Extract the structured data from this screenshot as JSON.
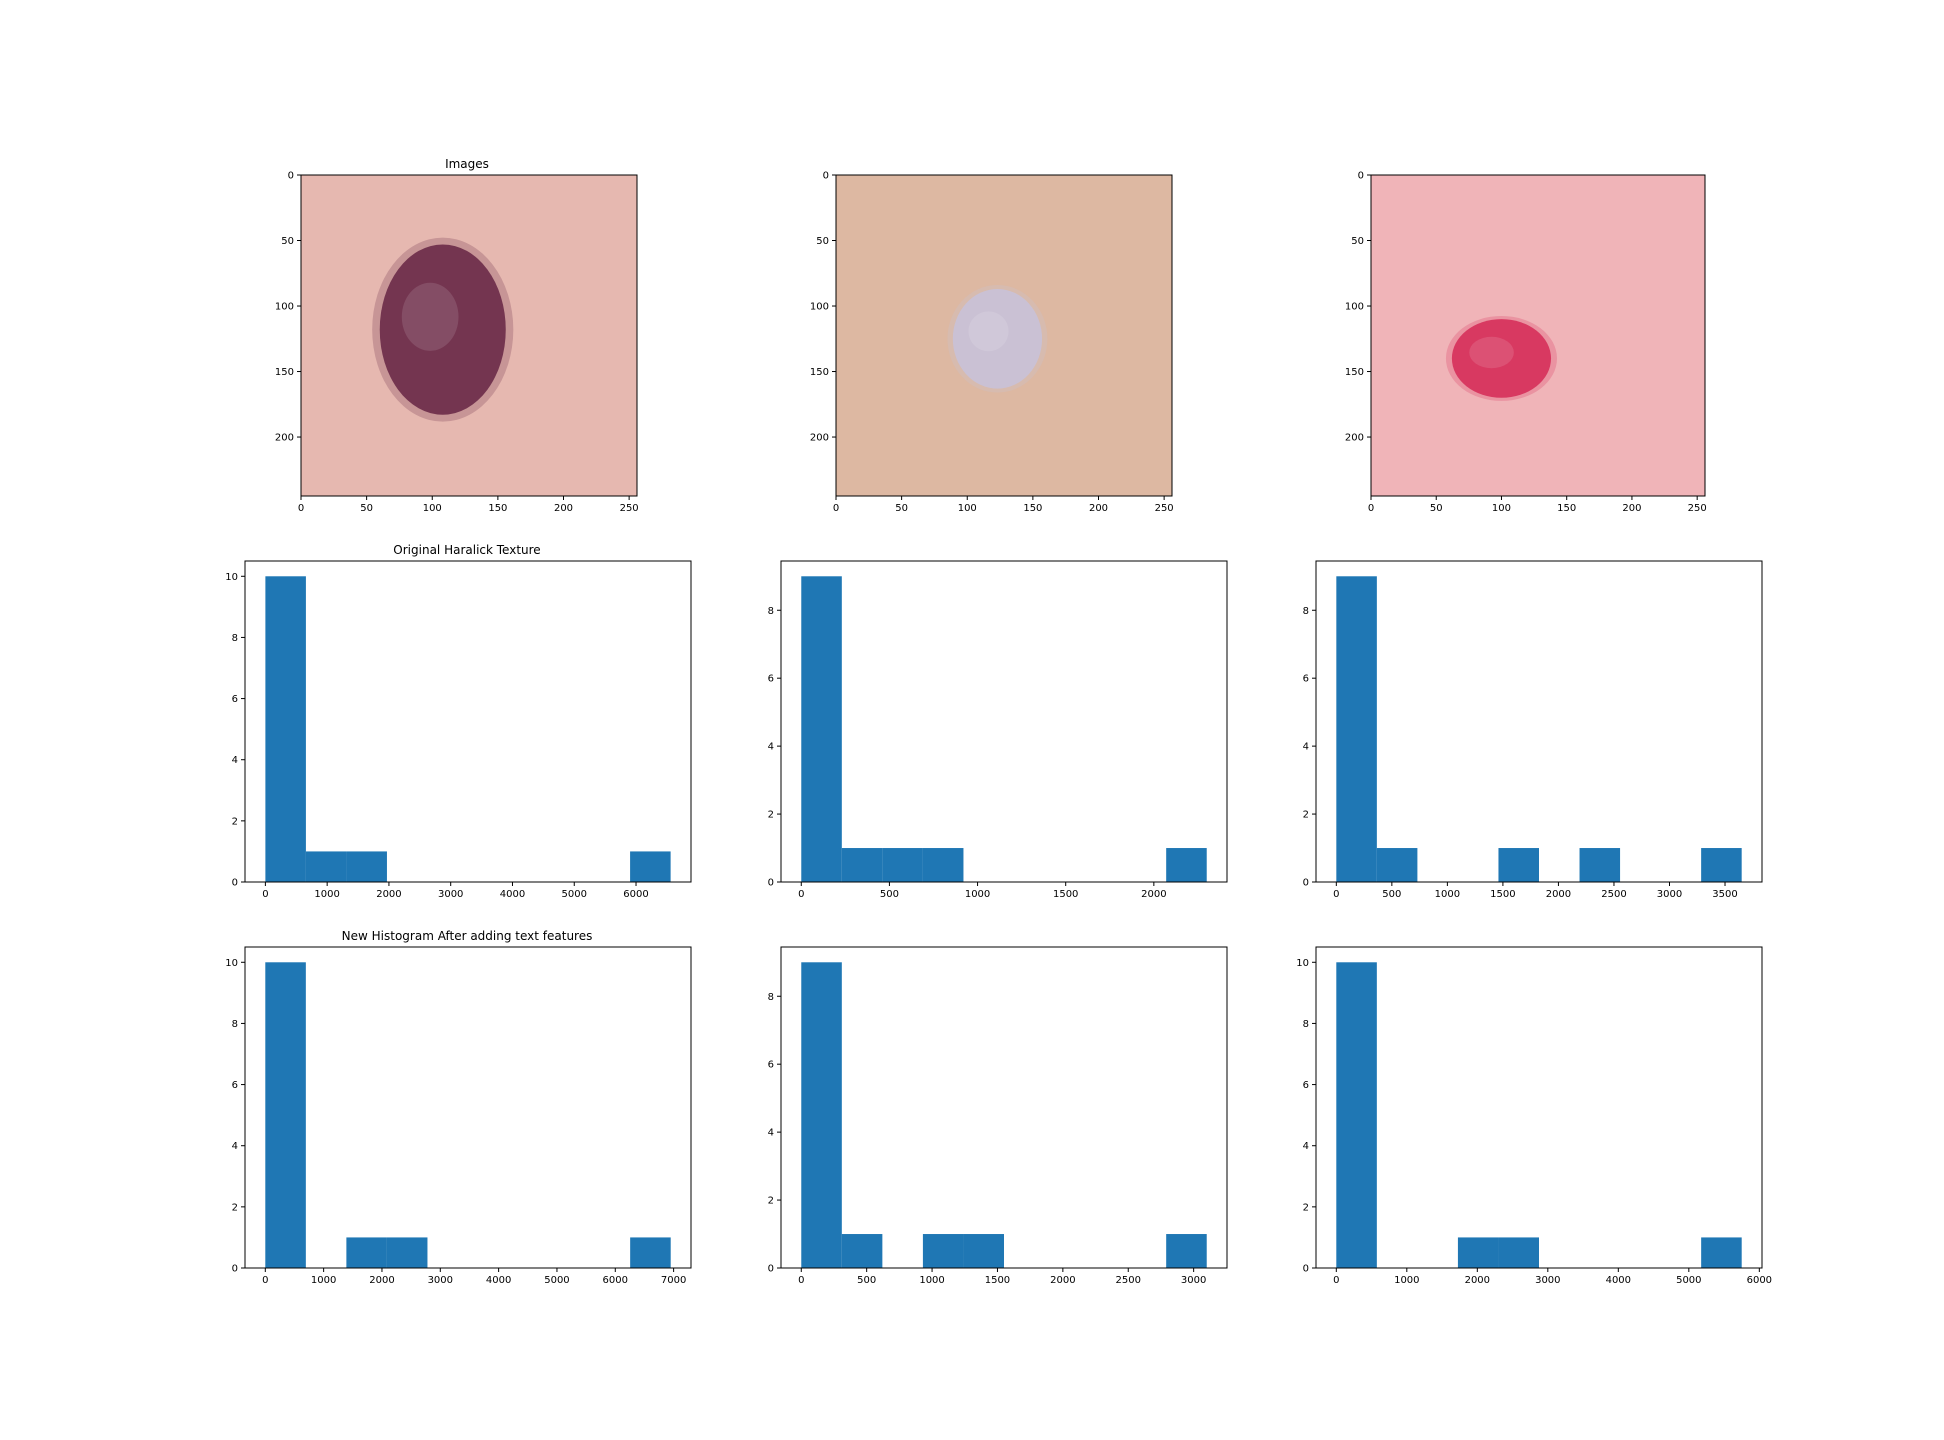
{
  "figure": {
    "background": "#ffffff",
    "bar_color": "#1f77b4"
  },
  "row_titles": {
    "images": "Images",
    "original": "Original Haralick Texture",
    "new": "New Histogram After adding text features"
  },
  "lesion_images": [
    {
      "type": "image",
      "xlim": [
        0,
        256
      ],
      "ylim": [
        245,
        0
      ],
      "xticks": [
        0,
        50,
        100,
        150,
        200,
        250
      ],
      "yticks": [
        0,
        50,
        100,
        150,
        200
      ],
      "background_color": "#e6b8b0",
      "lesion_color": "#6a2a48",
      "lesion_center": [
        108,
        118
      ],
      "lesion_radius": [
        48,
        65
      ]
    },
    {
      "type": "image",
      "xlim": [
        0,
        256
      ],
      "ylim": [
        245,
        0
      ],
      "xticks": [
        0,
        50,
        100,
        150,
        200,
        250
      ],
      "yticks": [
        0,
        50,
        100,
        150,
        200
      ],
      "background_color": "#ddb8a2",
      "lesion_color": "#c9c2d8",
      "lesion_center": [
        123,
        125
      ],
      "lesion_radius": [
        34,
        38
      ]
    },
    {
      "type": "image",
      "xlim": [
        0,
        256
      ],
      "ylim": [
        245,
        0
      ],
      "xticks": [
        0,
        50,
        100,
        150,
        200,
        250
      ],
      "yticks": [
        0,
        50,
        100,
        150,
        200
      ],
      "background_color": "#f0b4b8",
      "lesion_color": "#d6305a",
      "lesion_center": [
        100,
        140
      ],
      "lesion_radius": [
        38,
        30
      ]
    }
  ],
  "chart_data": [
    {
      "type": "bar",
      "title": "",
      "bins": [
        [
          0,
          656
        ],
        [
          656,
          1312
        ],
        [
          1312,
          1968
        ],
        [
          5904,
          6560
        ]
      ],
      "values": [
        10,
        1,
        1,
        1
      ],
      "xlim": [
        -330,
        6890
      ],
      "ylim": [
        0,
        10.5
      ],
      "xticks": [
        0,
        1000,
        2000,
        3000,
        4000,
        5000,
        6000
      ],
      "yticks": [
        0,
        2,
        4,
        6,
        8,
        10
      ]
    },
    {
      "type": "bar",
      "title": "",
      "bins": [
        [
          0,
          230
        ],
        [
          230,
          460
        ],
        [
          460,
          690
        ],
        [
          690,
          920
        ],
        [
          2070,
          2300
        ]
      ],
      "values": [
        9,
        1,
        1,
        1,
        1
      ],
      "xlim": [
        -115,
        2415
      ],
      "ylim": [
        0,
        9.45
      ],
      "xticks": [
        0,
        500,
        1000,
        1500,
        2000
      ],
      "yticks": [
        0,
        2,
        4,
        6,
        8
      ]
    },
    {
      "type": "bar",
      "title": "",
      "bins": [
        [
          0,
          365
        ],
        [
          365,
          730
        ],
        [
          1460,
          1825
        ],
        [
          2190,
          2555
        ],
        [
          3285,
          3650
        ]
      ],
      "values": [
        9,
        1,
        1,
        1,
        1
      ],
      "xlim": [
        -183,
        3833
      ],
      "ylim": [
        0,
        9.45
      ],
      "xticks": [
        0,
        500,
        1000,
        1500,
        2000,
        2500,
        3000,
        3500
      ],
      "yticks": [
        0,
        2,
        4,
        6,
        8
      ]
    },
    {
      "type": "bar",
      "title": "",
      "bins": [
        [
          0,
          695
        ],
        [
          1390,
          2085
        ],
        [
          2085,
          2780
        ],
        [
          6255,
          6950
        ]
      ],
      "values": [
        10,
        1,
        1,
        1
      ],
      "xlim": [
        -348,
        7298
      ],
      "ylim": [
        0,
        10.5
      ],
      "xticks": [
        0,
        1000,
        2000,
        3000,
        4000,
        5000,
        6000,
        7000
      ],
      "yticks": [
        0,
        2,
        4,
        6,
        8,
        10
      ]
    },
    {
      "type": "bar",
      "title": "",
      "bins": [
        [
          0,
          310
        ],
        [
          310,
          620
        ],
        [
          930,
          1240
        ],
        [
          1240,
          1550
        ],
        [
          2790,
          3100
        ]
      ],
      "values": [
        9,
        1,
        1,
        1,
        1
      ],
      "xlim": [
        -155,
        3255
      ],
      "ylim": [
        0,
        9.45
      ],
      "xticks": [
        0,
        500,
        1000,
        1500,
        2000,
        2500,
        3000
      ],
      "yticks": [
        0,
        2,
        4,
        6,
        8
      ]
    },
    {
      "type": "bar",
      "title": "",
      "bins": [
        [
          0,
          575
        ],
        [
          1725,
          2300
        ],
        [
          2300,
          2875
        ],
        [
          5175,
          5750
        ]
      ],
      "values": [
        10,
        1,
        1,
        1
      ],
      "xlim": [
        -288,
        6038
      ],
      "ylim": [
        0,
        10.5
      ],
      "xticks": [
        0,
        1000,
        2000,
        3000,
        4000,
        5000,
        6000
      ],
      "yticks": [
        0,
        2,
        4,
        6,
        8,
        10
      ]
    }
  ]
}
